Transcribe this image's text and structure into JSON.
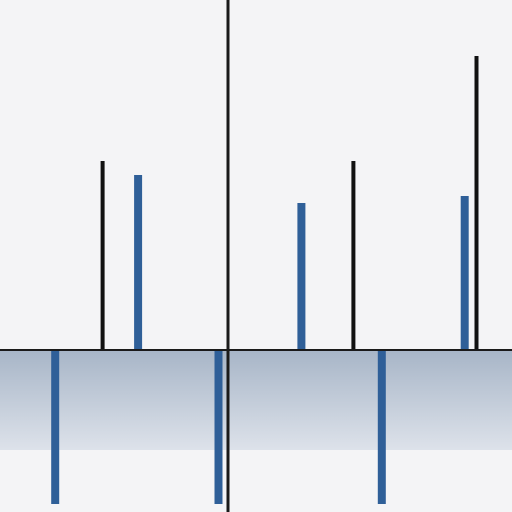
{
  "chart_data": {
    "type": "bar",
    "title": "",
    "xlabel": "",
    "ylabel": "",
    "grid": false,
    "legend": "none",
    "xlim": [
      -10,
      12
    ],
    "ylim": [
      -3,
      5
    ],
    "series": [
      {
        "style": "blue",
        "x": [
          -7.3,
          -3.8,
          -0.4,
          3.1,
          6.5,
          10.0
        ],
        "values": [
          -2.2,
          2.5,
          -2.2,
          2.1,
          -2.2,
          2.2
        ]
      },
      {
        "style": "black",
        "x": [
          -5.3,
          5.3,
          10.5
        ],
        "values": [
          2.7,
          2.7,
          4.2
        ]
      }
    ]
  },
  "colors": {
    "background": "#f4f4f6",
    "blue_bar": "#2f5f98",
    "black_bar": "#111111",
    "axis": "#1a1a1a",
    "band_top": "#a7b5c7",
    "band_bottom": "#dde2ea"
  }
}
